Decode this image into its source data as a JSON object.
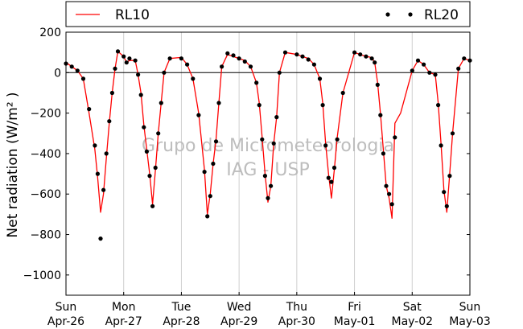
{
  "chart_data": {
    "type": "line",
    "ylabel": "Net radiation (W/m² )",
    "ylim": [
      -1100,
      200
    ],
    "yticks": [
      200,
      0,
      -200,
      -400,
      -600,
      -800,
      -1000
    ],
    "ytick_labels": [
      "200",
      "0",
      "−200",
      "−400",
      "−600",
      "−800",
      "−1000"
    ],
    "xlim": [
      0,
      7
    ],
    "xticks": [
      {
        "day": 0,
        "weekday": "Sun",
        "date": "Apr-26"
      },
      {
        "day": 1,
        "weekday": "Mon",
        "date": "Apr-27"
      },
      {
        "day": 2,
        "weekday": "Tue",
        "date": "Apr-28"
      },
      {
        "day": 3,
        "weekday": "Wed",
        "date": "Apr-29"
      },
      {
        "day": 4,
        "weekday": "Thu",
        "date": "Apr-30"
      },
      {
        "day": 5,
        "weekday": "Fri",
        "date": "May-01"
      },
      {
        "day": 6,
        "weekday": "Sat",
        "date": "May-02"
      },
      {
        "day": 7,
        "weekday": "Sun",
        "date": "May-03"
      }
    ],
    "grid": "vertical",
    "legend_position": "top",
    "watermark": [
      "Grupo de Micrometeorologia",
      "IAG - USP"
    ],
    "series": [
      {
        "name": "RL10",
        "color": "#ff0000",
        "style": "line",
        "x": [
          0.0,
          0.1,
          0.2,
          0.3,
          0.4,
          0.5,
          0.55,
          0.6,
          0.65,
          0.7,
          0.75,
          0.8,
          0.85,
          0.9,
          1.0,
          1.05,
          1.1,
          1.2,
          1.25,
          1.3,
          1.35,
          1.4,
          1.45,
          1.5,
          1.55,
          1.6,
          1.65,
          1.7,
          1.8,
          2.0,
          2.1,
          2.2,
          2.3,
          2.4,
          2.45,
          2.5,
          2.55,
          2.6,
          2.65,
          2.7,
          2.8,
          2.9,
          3.0,
          3.1,
          3.2,
          3.3,
          3.35,
          3.4,
          3.45,
          3.5,
          3.55,
          3.6,
          3.65,
          3.7,
          3.8,
          4.0,
          4.1,
          4.2,
          4.3,
          4.4,
          4.45,
          4.5,
          4.55,
          4.6,
          4.65,
          4.7,
          4.8,
          5.0,
          5.1,
          5.2,
          5.3,
          5.35,
          5.4,
          5.45,
          5.5,
          5.55,
          5.6,
          5.65,
          5.7,
          5.8,
          6.0,
          6.1,
          6.2,
          6.3,
          6.4,
          6.45,
          6.5,
          6.55,
          6.6,
          6.65,
          6.7,
          6.8,
          6.9,
          7.0
        ],
        "y": [
          50,
          30,
          10,
          -30,
          -200,
          -380,
          -520,
          -690,
          -600,
          -420,
          -250,
          -100,
          20,
          105,
          80,
          50,
          60,
          60,
          -10,
          -100,
          -260,
          -380,
          -500,
          -650,
          -480,
          -300,
          -150,
          0,
          70,
          75,
          40,
          -30,
          -200,
          -480,
          -700,
          -600,
          -450,
          -330,
          -150,
          30,
          90,
          80,
          70,
          60,
          30,
          -50,
          -150,
          -320,
          -500,
          -640,
          -560,
          -350,
          -220,
          0,
          100,
          90,
          80,
          70,
          40,
          -30,
          -150,
          -350,
          -500,
          -620,
          -480,
          -320,
          -100,
          100,
          90,
          80,
          75,
          50,
          -50,
          -200,
          -380,
          -560,
          -620,
          -720,
          -250,
          -200,
          10,
          60,
          40,
          0,
          -10,
          -150,
          -350,
          -580,
          -690,
          -500,
          -300,
          20,
          70,
          60
        ]
      },
      {
        "name": "RL20",
        "color": "#000000",
        "style": "dots",
        "x": [
          0.0,
          0.1,
          0.2,
          0.3,
          0.4,
          0.5,
          0.55,
          0.6,
          0.65,
          0.7,
          0.75,
          0.8,
          0.85,
          0.9,
          1.0,
          1.05,
          1.1,
          1.2,
          1.25,
          1.3,
          1.35,
          1.4,
          1.45,
          1.5,
          1.55,
          1.6,
          1.65,
          1.7,
          1.8,
          2.0,
          2.1,
          2.2,
          2.3,
          2.4,
          2.45,
          2.5,
          2.55,
          2.6,
          2.65,
          2.7,
          2.8,
          2.9,
          3.0,
          3.1,
          3.2,
          3.3,
          3.35,
          3.4,
          3.45,
          3.5,
          3.55,
          3.6,
          3.65,
          3.7,
          3.8,
          4.0,
          4.1,
          4.2,
          4.3,
          4.4,
          4.45,
          4.5,
          4.55,
          4.6,
          4.65,
          4.7,
          4.8,
          5.0,
          5.1,
          5.2,
          5.3,
          5.35,
          5.4,
          5.45,
          5.5,
          5.55,
          5.6,
          5.65,
          5.7,
          6.0,
          6.1,
          6.2,
          6.3,
          6.4,
          6.45,
          6.5,
          6.55,
          6.6,
          6.65,
          6.7,
          6.8,
          6.9,
          7.0
        ],
        "y": [
          45,
          30,
          10,
          -30,
          -180,
          -360,
          -500,
          -820,
          -580,
          -400,
          -240,
          -100,
          20,
          105,
          80,
          50,
          70,
          60,
          -10,
          -110,
          -270,
          -390,
          -510,
          -660,
          -470,
          -300,
          -150,
          0,
          70,
          70,
          40,
          -30,
          -210,
          -490,
          -710,
          -610,
          -450,
          -340,
          -150,
          30,
          95,
          85,
          70,
          55,
          30,
          -50,
          -160,
          -330,
          -510,
          -620,
          -560,
          -350,
          -220,
          0,
          100,
          90,
          80,
          65,
          40,
          -30,
          -160,
          -360,
          -520,
          -540,
          -470,
          -330,
          -100,
          100,
          90,
          80,
          70,
          50,
          -60,
          -210,
          -400,
          -560,
          -600,
          -650,
          -320,
          10,
          60,
          40,
          0,
          -10,
          -160,
          -360,
          -590,
          -660,
          -510,
          -300,
          20,
          70,
          60
        ]
      }
    ]
  }
}
